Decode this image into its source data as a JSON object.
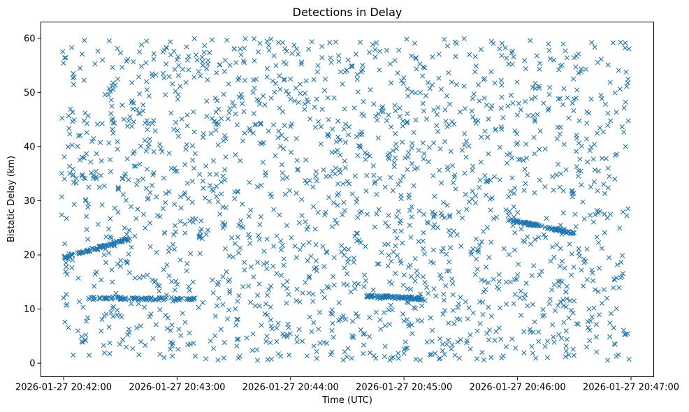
{
  "chart_data": {
    "type": "scatter",
    "title": "Detections in Delay",
    "xlabel": "Time (UTC)",
    "ylabel": "Bistatic Delay (km)",
    "xlim": [
      "2026-01-27 20:41:48",
      "2026-01-27 20:47:12"
    ],
    "ylim": [
      -2.5,
      63
    ],
    "x_ticks": [
      "2026-01-27 20:42:00",
      "2026-01-27 20:43:00",
      "2026-01-27 20:44:00",
      "2026-01-27 20:45:00",
      "2026-01-27 20:46:00",
      "2026-01-27 20:47:00"
    ],
    "y_ticks": [
      0,
      10,
      20,
      30,
      40,
      50,
      60
    ],
    "marker": "x",
    "color": "#1f77b4",
    "grid": false,
    "approximate_distribution": {
      "x_range": [
        "2026-01-27 20:41:59",
        "2026-01-27 20:46:59"
      ],
      "y_range": [
        0.5,
        60
      ],
      "n_points": 2200,
      "note_tracks": [
        {
          "x_start": "2026-01-27 20:42:12",
          "x_end": "2026-01-27 20:43:10",
          "y_start": 12,
          "y_end": 11.8
        },
        {
          "x_start": "2026-01-27 20:44:40",
          "x_end": "2026-01-27 20:45:10",
          "y_start": 12.4,
          "y_end": 11.9
        },
        {
          "x_start": "2026-01-27 20:42:00",
          "x_end": "2026-01-27 20:42:35",
          "y_start": 19.5,
          "y_end": 23
        },
        {
          "x_start": "2026-01-27 20:45:55",
          "x_end": "2026-01-27 20:46:30",
          "y_start": 26.5,
          "y_end": 24
        }
      ]
    }
  }
}
